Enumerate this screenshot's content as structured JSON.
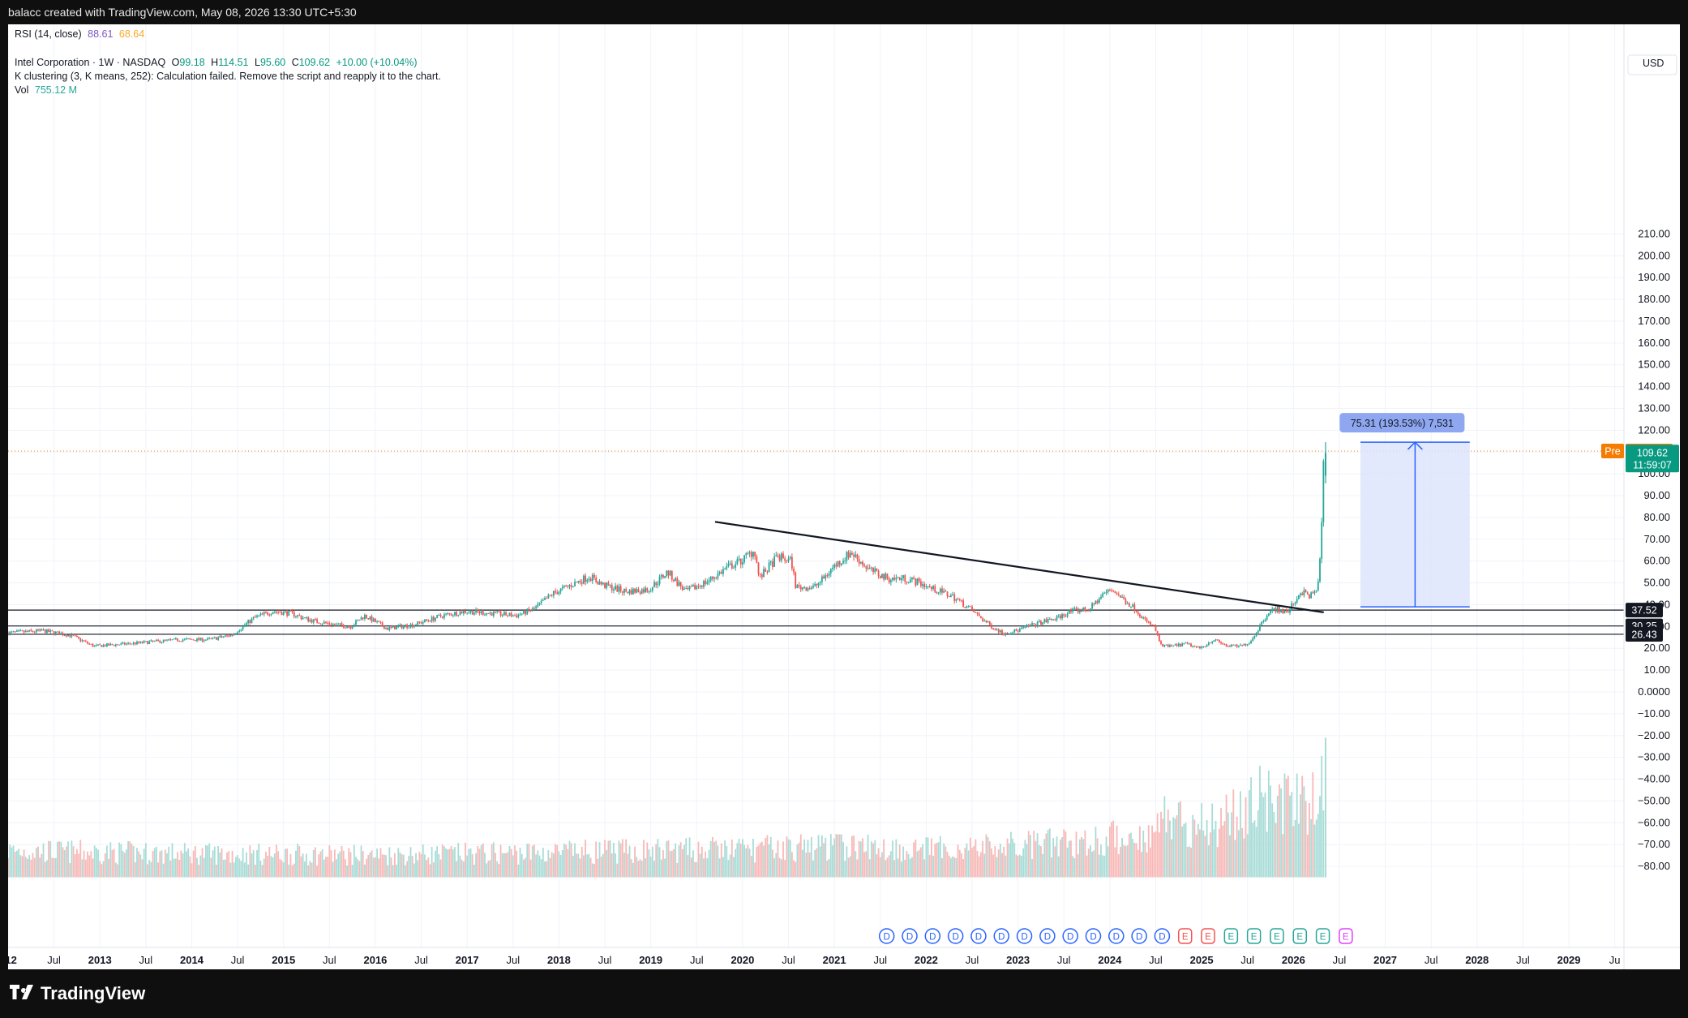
{
  "header": {
    "attribution": "balacc created with TradingView.com, May 08, 2026 13:30 UTC+5:30"
  },
  "legend": {
    "rsi": {
      "label": "RSI (14, close)",
      "value1": "88.61",
      "value2": "68.64"
    },
    "symbol": {
      "name": "Intel Corporation · 1W · NASDAQ",
      "o_label": "O",
      "o": "99.18",
      "h_label": "H",
      "h": "114.51",
      "l_label": "L",
      "l": "95.60",
      "c_label": "C",
      "c": "109.62",
      "change": "+10.00 (+10.04%)"
    },
    "kmeans": "K clustering (3, K means, 252): Calculation failed. Remove the script and reapply it to the chart.",
    "vol": {
      "label": "Vol",
      "value": "755.12 M"
    }
  },
  "axis": {
    "currency": "USD",
    "y_ticks": [
      "210.00",
      "200.00",
      "190.00",
      "180.00",
      "170.00",
      "160.00",
      "150.00",
      "140.00",
      "130.00",
      "120.00",
      "110.00",
      "100.00",
      "90.00",
      "80.00",
      "70.00",
      "60.00",
      "50.00",
      "40.00",
      "30.00",
      "20.00",
      "10.00",
      "0.0000",
      "−10.00",
      "−20.00",
      "−30.00",
      "−40.00",
      "−50.00",
      "−60.00",
      "−70.00",
      "−80.00"
    ],
    "y_values": [
      210,
      200,
      190,
      180,
      170,
      160,
      150,
      140,
      130,
      120,
      110,
      100,
      90,
      80,
      70,
      60,
      50,
      40,
      30,
      20,
      10,
      0,
      -10,
      -20,
      -30,
      -40,
      -50,
      -60,
      -70,
      -80
    ],
    "x_ticks": [
      "012",
      "Jul",
      "2013",
      "Jul",
      "2014",
      "Jul",
      "2015",
      "Jul",
      "2016",
      "Jul",
      "2017",
      "Jul",
      "2018",
      "Jul",
      "2019",
      "Jul",
      "2020",
      "Jul",
      "2021",
      "Jul",
      "2022",
      "Jul",
      "2023",
      "Jul",
      "2024",
      "Jul",
      "2025",
      "Jul",
      "2026",
      "Jul",
      "2027",
      "Jul",
      "2028",
      "Jul",
      "2029",
      "Ju"
    ],
    "x_values": [
      2012.0,
      2012.5,
      2013.0,
      2013.5,
      2014.0,
      2014.5,
      2015.0,
      2015.5,
      2016.0,
      2016.5,
      2017.0,
      2017.5,
      2018.0,
      2018.5,
      2019.0,
      2019.5,
      2020.0,
      2020.5,
      2021.0,
      2021.5,
      2022.0,
      2022.5,
      2023.0,
      2023.5,
      2024.0,
      2024.5,
      2025.0,
      2025.5,
      2026.0,
      2026.5,
      2027.0,
      2027.5,
      2028.0,
      2028.5,
      2029.0,
      2029.5
    ]
  },
  "badges": {
    "pre_label": "Pre",
    "pre_price": "110.49",
    "last_price": "109.62",
    "countdown": "11:59:07",
    "level1": "37.52",
    "level2": "30.25",
    "level3": "26.43"
  },
  "measure": {
    "label": "75.31 (193.53%) 7,531"
  },
  "event_markers": {
    "dividend_letter": "D",
    "earnings_letter": "E",
    "dividends": [
      2021.57,
      2021.82,
      2022.07,
      2022.32,
      2022.57,
      2022.82,
      2023.07,
      2023.32,
      2023.57,
      2023.82,
      2024.07,
      2024.32,
      2024.57
    ],
    "earnings": [
      2024.82,
      2025.07,
      2025.32,
      2025.57,
      2025.82,
      2026.07,
      2026.32,
      2026.57
    ]
  },
  "colors": {
    "up": "#26a69a",
    "down": "#ef5350",
    "vol_up": "#a9dcd7",
    "vol_down": "#f7b9b8",
    "rsi_v1": "#7e57c2",
    "rsi_v2": "#f9a825",
    "accent": "#2962ff",
    "measure_fill": "#dbe3fd",
    "measure_label": "#8ea7f0",
    "pre": "#f57c00",
    "last": "#089981"
  },
  "footer": {
    "brand": "TradingView"
  },
  "chart_data": {
    "type": "candlestick",
    "timeframe": "1W",
    "symbol": "Intel Corporation · NASDAQ",
    "ylim": [
      -85,
      215
    ],
    "xlim": [
      2012.0,
      2029.6
    ],
    "price_anchors": [
      [
        2012.0,
        27
      ],
      [
        2012.4,
        28
      ],
      [
        2012.7,
        26
      ],
      [
        2012.95,
        21
      ],
      [
        2013.3,
        22
      ],
      [
        2013.6,
        23
      ],
      [
        2013.9,
        24
      ],
      [
        2014.2,
        24
      ],
      [
        2014.45,
        26
      ],
      [
        2014.7,
        34
      ],
      [
        2014.9,
        37
      ],
      [
        2015.1,
        36
      ],
      [
        2015.3,
        33
      ],
      [
        2015.55,
        31
      ],
      [
        2015.75,
        30
      ],
      [
        2015.9,
        35
      ],
      [
        2016.15,
        29
      ],
      [
        2016.45,
        31
      ],
      [
        2016.75,
        35
      ],
      [
        2017.0,
        37
      ],
      [
        2017.3,
        36
      ],
      [
        2017.55,
        35
      ],
      [
        2017.75,
        38
      ],
      [
        2017.95,
        45
      ],
      [
        2018.15,
        49
      ],
      [
        2018.35,
        53
      ],
      [
        2018.5,
        49
      ],
      [
        2018.75,
        46
      ],
      [
        2019.0,
        47
      ],
      [
        2019.2,
        55
      ],
      [
        2019.4,
        46
      ],
      [
        2019.65,
        51
      ],
      [
        2019.85,
        57
      ],
      [
        2020.0,
        60
      ],
      [
        2020.15,
        65
      ],
      [
        2020.2,
        52
      ],
      [
        2020.4,
        62
      ],
      [
        2020.55,
        60
      ],
      [
        2020.6,
        48
      ],
      [
        2020.8,
        48
      ],
      [
        2020.9,
        52
      ],
      [
        2021.0,
        57
      ],
      [
        2021.2,
        64
      ],
      [
        2021.4,
        56
      ],
      [
        2021.6,
        52
      ],
      [
        2021.8,
        52
      ],
      [
        2021.95,
        50
      ],
      [
        2022.1,
        47
      ],
      [
        2022.3,
        44
      ],
      [
        2022.5,
        38
      ],
      [
        2022.7,
        31
      ],
      [
        2022.85,
        27
      ],
      [
        2023.0,
        28
      ],
      [
        2023.2,
        31
      ],
      [
        2023.45,
        34
      ],
      [
        2023.6,
        37
      ],
      [
        2023.8,
        38
      ],
      [
        2023.95,
        45
      ],
      [
        2024.05,
        47
      ],
      [
        2024.15,
        43
      ],
      [
        2024.3,
        38
      ],
      [
        2024.42,
        32
      ],
      [
        2024.5,
        30
      ],
      [
        2024.58,
        21
      ],
      [
        2024.7,
        21
      ],
      [
        2024.85,
        22
      ],
      [
        2025.0,
        20
      ],
      [
        2025.15,
        24
      ],
      [
        2025.3,
        21
      ],
      [
        2025.45,
        21
      ],
      [
        2025.55,
        23
      ],
      [
        2025.65,
        30
      ],
      [
        2025.75,
        37
      ],
      [
        2025.85,
        38
      ],
      [
        2025.95,
        36
      ],
      [
        2026.1,
        46
      ],
      [
        2026.2,
        44
      ],
      [
        2026.27,
        46
      ],
      [
        2026.31,
        60
      ],
      [
        2026.33,
        80
      ],
      [
        2026.35,
        109.62
      ]
    ],
    "last_candle": {
      "open": 99.18,
      "high": 114.51,
      "low": 95.6,
      "close": 109.62,
      "change": 10.0,
      "change_pct": 10.04
    },
    "horizontal_levels": [
      37.52,
      30.25,
      26.43
    ],
    "trendline": {
      "from": [
        2019.7,
        78
      ],
      "to": [
        2026.33,
        36.5
      ]
    },
    "current_price": 109.62,
    "premarket_price": 110.49,
    "measurement": {
      "x_from": 2026.73,
      "x_to": 2027.92,
      "y_from": 39,
      "y_to": 114.5,
      "change": 75.31,
      "change_pct": 193.53,
      "ticks": 7531
    },
    "volume_pane": {
      "baseline": -85,
      "top": -8,
      "profile_anchors": [
        [
          2012.0,
          -67
        ],
        [
          2014.0,
          -69
        ],
        [
          2016.0,
          -70
        ],
        [
          2018.0,
          -68
        ],
        [
          2020.0,
          -66
        ],
        [
          2021.0,
          -64
        ],
        [
          2022.0,
          -66
        ],
        [
          2023.0,
          -64
        ],
        [
          2023.9,
          -60
        ],
        [
          2024.5,
          -55
        ],
        [
          2024.6,
          -42
        ],
        [
          2025.0,
          -50
        ],
        [
          2025.5,
          -38
        ],
        [
          2025.8,
          -28
        ],
        [
          2026.0,
          -38
        ],
        [
          2026.35,
          -22
        ]
      ]
    }
  }
}
